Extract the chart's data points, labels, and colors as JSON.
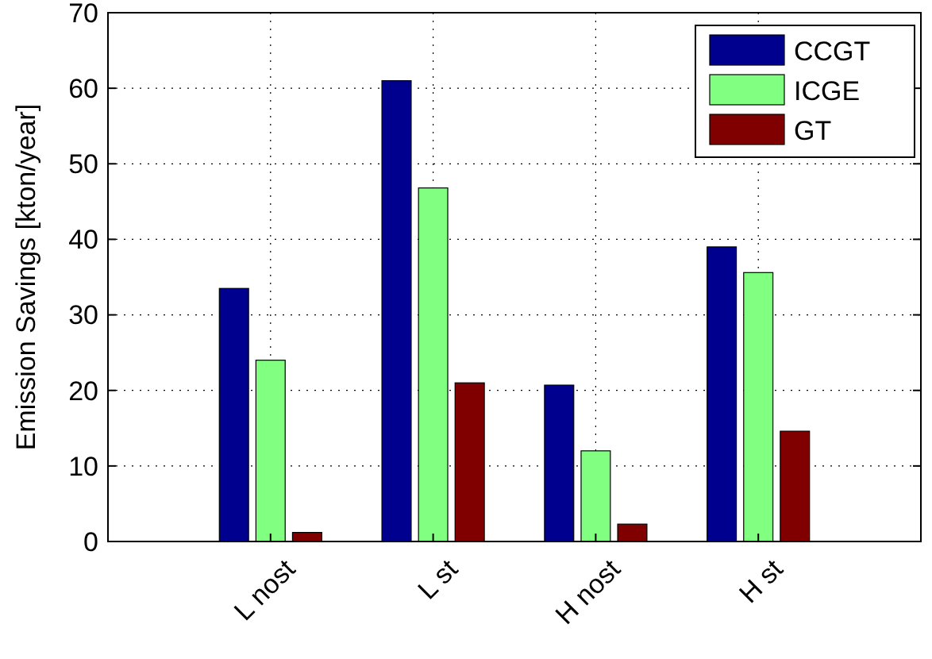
{
  "chart_data": {
    "type": "bar",
    "ylabel": "Emission Savings [kton/year]",
    "categories": [
      "L nost",
      "L st",
      "H nost",
      "H st"
    ],
    "series": [
      {
        "name": "CCGT",
        "color": "#00008f",
        "values": [
          33.5,
          61,
          20.7,
          39
        ]
      },
      {
        "name": "ICGE",
        "color": "#80ff80",
        "values": [
          24,
          46.8,
          12,
          35.6
        ]
      },
      {
        "name": "GT",
        "color": "#800000",
        "values": [
          1.2,
          21,
          2.3,
          14.6
        ]
      }
    ],
    "ylim": [
      0,
      70
    ],
    "yticks": [
      0,
      10,
      20,
      30,
      40,
      50,
      60,
      70
    ],
    "grid": true,
    "legend": "top right"
  }
}
